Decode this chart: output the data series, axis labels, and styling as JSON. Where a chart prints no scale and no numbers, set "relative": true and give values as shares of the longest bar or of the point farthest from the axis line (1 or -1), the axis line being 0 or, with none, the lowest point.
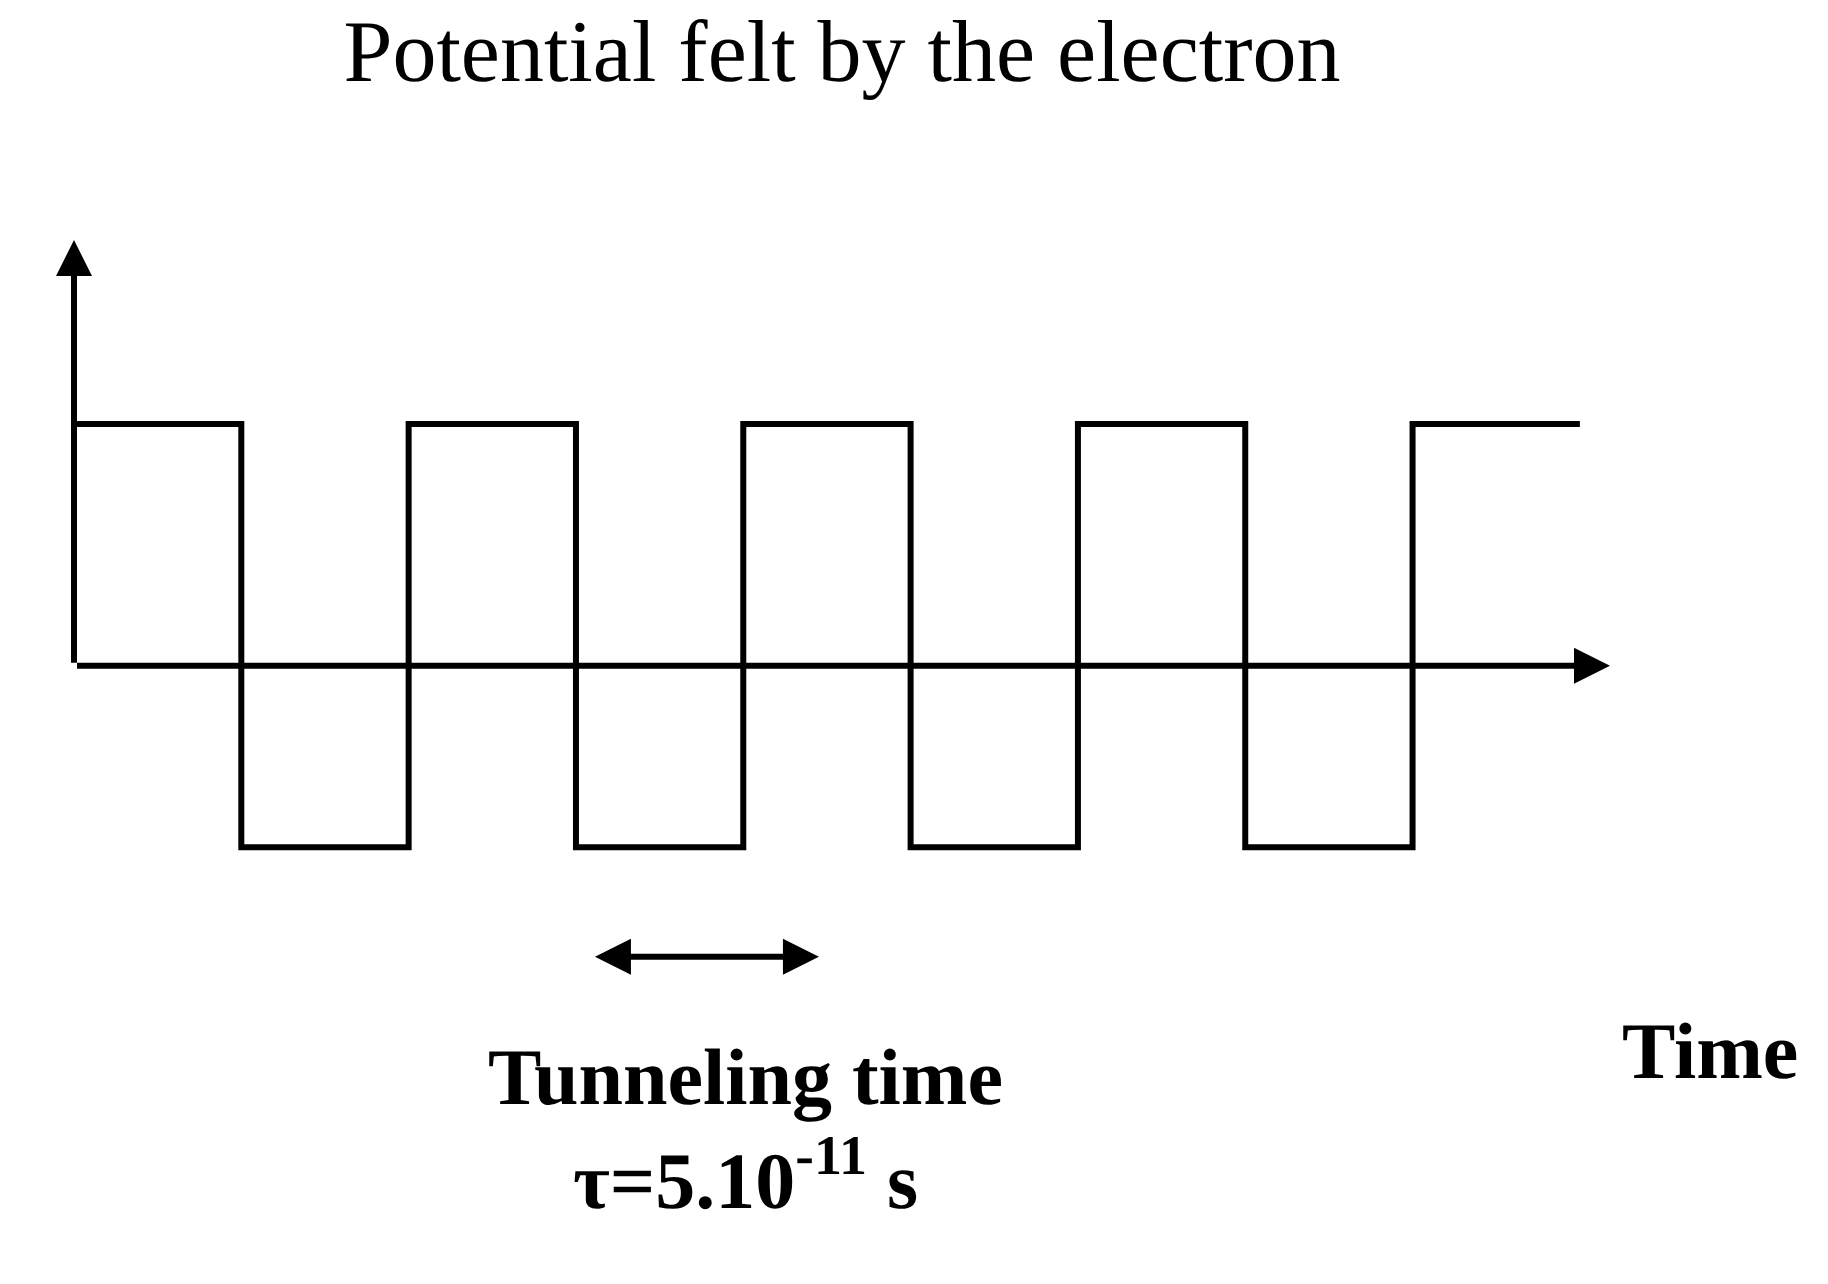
{
  "chart_data": {
    "type": "step",
    "title": "Potential felt by the electron",
    "xlabel": "Time",
    "relative": true,
    "categories": [
      null,
      null,
      null,
      null,
      null,
      null,
      null,
      null,
      null,
      null
    ],
    "series": [
      {
        "color": "#000000",
        "values": [
          1,
          -0.75,
          1,
          -0.75,
          1,
          -0.75,
          1,
          -0.75,
          1,
          1
        ]
      }
    ],
    "annotations": [
      "Tunneling time\nτ=5.10$^{-11}$ s"
    ],
    "marker": "none",
    "line_style": "solid"
  }
}
